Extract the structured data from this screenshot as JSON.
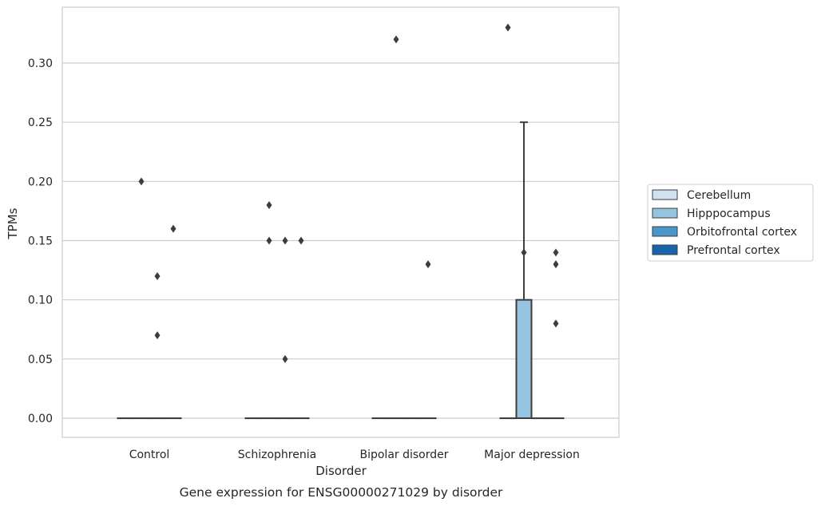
{
  "chart_data": {
    "type": "box",
    "title": "",
    "caption": "Gene expression for ENSG00000271029 by disorder",
    "xlabel": "Disorder",
    "ylabel": "TPMs",
    "ylim": [
      -0.0165,
      0.3465
    ],
    "yticks": [
      0.0,
      0.05,
      0.1,
      0.15,
      0.2,
      0.25,
      0.3
    ],
    "ytick_labels": [
      "0.00",
      "0.05",
      "0.10",
      "0.15",
      "0.20",
      "0.25",
      "0.30"
    ],
    "categories": [
      "Control",
      "Schizophrenia",
      "Bipolar disorder",
      "Major depression"
    ],
    "grid": "horizontal",
    "legend_placement": "right",
    "series": [
      {
        "name": "Cerebellum",
        "color": "#d0e1f2",
        "boxes": [
          {
            "q1": 0,
            "median": 0,
            "q3": 0,
            "whisker_low": 0,
            "whisker_high": 0,
            "outliers": []
          },
          {
            "q1": 0,
            "median": 0,
            "q3": 0,
            "whisker_low": 0,
            "whisker_high": 0,
            "outliers": []
          },
          {
            "q1": 0,
            "median": 0,
            "q3": 0,
            "whisker_low": 0,
            "whisker_high": 0,
            "outliers": []
          },
          {
            "q1": 0,
            "median": 0,
            "q3": 0,
            "whisker_low": 0,
            "whisker_high": 0,
            "outliers": [
              0.33
            ]
          }
        ]
      },
      {
        "name": "Hipppocampus",
        "color": "#94c4df",
        "boxes": [
          {
            "q1": 0,
            "median": 0,
            "q3": 0,
            "whisker_low": 0,
            "whisker_high": 0,
            "outliers": [
              0.2
            ]
          },
          {
            "q1": 0,
            "median": 0,
            "q3": 0,
            "whisker_low": 0,
            "whisker_high": 0,
            "outliers": [
              0.18,
              0.15
            ]
          },
          {
            "q1": 0,
            "median": 0,
            "q3": 0,
            "whisker_low": 0,
            "whisker_high": 0,
            "outliers": [
              0.32
            ]
          },
          {
            "q1": 0,
            "median": 0,
            "q3": 0.1,
            "whisker_low": 0,
            "whisker_high": 0.25,
            "outliers": [
              0.14
            ]
          }
        ]
      },
      {
        "name": "Orbitofrontal cortex",
        "color": "#4a98c9",
        "boxes": [
          {
            "q1": 0,
            "median": 0,
            "q3": 0,
            "whisker_low": 0,
            "whisker_high": 0,
            "outliers": [
              0.12,
              0.07
            ]
          },
          {
            "q1": 0,
            "median": 0,
            "q3": 0,
            "whisker_low": 0,
            "whisker_high": 0,
            "outliers": [
              0.15,
              0.05
            ]
          },
          {
            "q1": 0,
            "median": 0,
            "q3": 0,
            "whisker_low": 0,
            "whisker_high": 0,
            "outliers": []
          },
          {
            "q1": 0,
            "median": 0,
            "q3": 0,
            "whisker_low": 0,
            "whisker_high": 0,
            "outliers": []
          }
        ]
      },
      {
        "name": "Prefrontal cortex",
        "color": "#1764ab",
        "boxes": [
          {
            "q1": 0,
            "median": 0,
            "q3": 0,
            "whisker_low": 0,
            "whisker_high": 0,
            "outliers": [
              0.16
            ]
          },
          {
            "q1": 0,
            "median": 0,
            "q3": 0,
            "whisker_low": 0,
            "whisker_high": 0,
            "outliers": [
              0.15
            ]
          },
          {
            "q1": 0,
            "median": 0,
            "q3": 0,
            "whisker_low": 0,
            "whisker_high": 0,
            "outliers": [
              0.13
            ]
          },
          {
            "q1": 0,
            "median": 0,
            "q3": 0,
            "whisker_low": 0,
            "whisker_high": 0,
            "outliers": [
              0.14,
              0.13,
              0.08
            ]
          }
        ]
      }
    ]
  }
}
